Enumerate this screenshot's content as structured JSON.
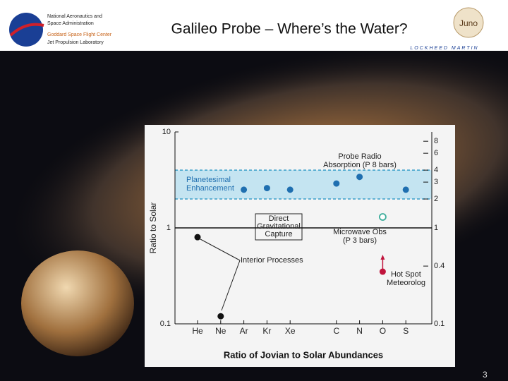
{
  "header": {
    "agency": [
      "National Aeronautics and",
      "Space Administration"
    ],
    "centers": [
      "Goddard Space Flight Center",
      "Jet Propulsion Laboratory"
    ],
    "title": "Galileo Probe – Where’s the Water?",
    "mission": "Juno",
    "partner": "LOCKHEED MARTIN"
  },
  "page_number": "3",
  "chart_data": {
    "type": "scatter",
    "y_label": "Ratio to Solar",
    "x_label": "Ratio of Jovian to Solar Abundances",
    "categories": [
      "He",
      "Ne",
      "Ar",
      "Kr",
      "Xe",
      null,
      "C",
      "N",
      "O",
      "S"
    ],
    "log_scale": true,
    "ylim": [
      0.1,
      10
    ],
    "yticks": [
      0.1,
      1,
      10
    ],
    "y2lim": [
      0.1,
      10
    ],
    "y2ticks": [
      8,
      6,
      4,
      3,
      2,
      1,
      0.4,
      0.1
    ],
    "band": [
      2,
      4
    ],
    "band_color": "#c4e4f1",
    "reference": 1,
    "series": [
      {
        "color": "#1f6fb0",
        "marker": "filled",
        "values": [
          null,
          null,
          2.5,
          2.6,
          2.5,
          null,
          2.9,
          3.4,
          null,
          2.5
        ]
      },
      {
        "color": "#111111",
        "marker": "filled",
        "values": [
          0.8,
          0.12,
          null,
          null,
          null,
          null,
          null,
          null,
          null,
          null
        ]
      },
      {
        "color": "#3fae9c",
        "marker": "open",
        "values": [
          null,
          null,
          null,
          null,
          null,
          null,
          null,
          null,
          1.3,
          null
        ]
      },
      {
        "color": "#c0143c",
        "marker": "arrow-up",
        "values": [
          null,
          null,
          null,
          null,
          null,
          null,
          null,
          null,
          0.35,
          null
        ]
      }
    ],
    "annotations": [
      "Probe Radio",
      "Absorption (P   8 bars)",
      "Planetesimal",
      "Enhancement",
      "Direct",
      "Gravitational",
      "Capture",
      "Microwave Obs",
      "(P   3 bars)",
      "Interior Processes",
      "Hot Spot",
      "Meteorolog"
    ]
  }
}
